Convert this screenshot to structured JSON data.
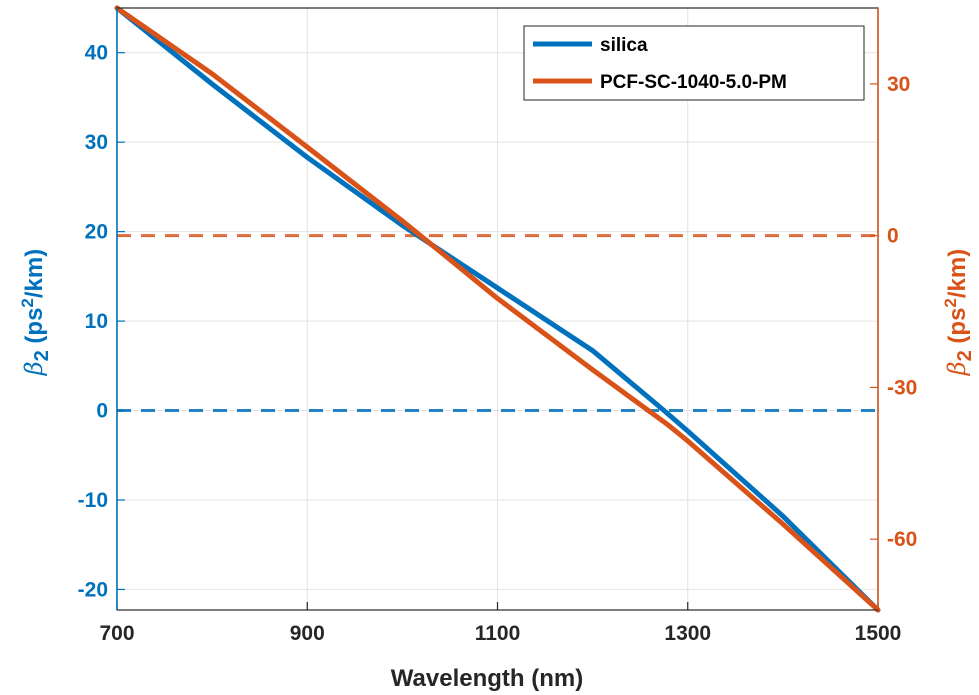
{
  "chart_data": {
    "type": "line",
    "xlabel": "Wavelength (nm)",
    "ylabel_left": {
      "symbol": "β",
      "sub": "2",
      "unit_pre": " (ps",
      "sup": "2",
      "unit_post": "/km)"
    },
    "ylabel_right": {
      "symbol": "β",
      "sub": "2",
      "unit_pre": " (ps",
      "sup": "2",
      "unit_post": "/km)"
    },
    "xlim": [
      700,
      1500
    ],
    "ylim_left": [
      -22.3,
      45
    ],
    "ylim_right": [
      -74,
      45
    ],
    "x_ticks": [
      "700",
      "900",
      "1100",
      "1300",
      "1500"
    ],
    "y_ticks_left": [
      "-20",
      "-10",
      "0",
      "10",
      "20",
      "30",
      "40"
    ],
    "y_ticks_right": [
      "-60",
      "-30",
      "0",
      "30"
    ],
    "grid": true,
    "legend_position": "top-right",
    "colors": {
      "left_axis": "#0072BD",
      "right_axis": "#D95319",
      "axes": "#262626",
      "grid": "#e2e2e2"
    },
    "series": [
      {
        "name": "silica",
        "axis": "left",
        "color": "#0072BD",
        "x": [
          700,
          800,
          900,
          1000,
          1100,
          1200,
          1275,
          1300,
          1400,
          1500
        ],
        "y": [
          45,
          36.5,
          28.3,
          20.7,
          13.7,
          6.7,
          0.0,
          -2.3,
          -11.8,
          -22.3
        ]
      },
      {
        "name": "PCF-SC-1040-5.0-PM",
        "axis": "right",
        "color": "#D95319",
        "x": [
          700,
          800,
          900,
          1000,
          1040,
          1100,
          1200,
          1280,
          1300,
          1400,
          1500
        ],
        "y": [
          45,
          32,
          17.5,
          2.9,
          -3.2,
          -12.4,
          -26.5,
          -37.5,
          -40.6,
          -57.0,
          -74
        ]
      }
    ],
    "reference_lines": [
      {
        "axis": "left",
        "y": 0,
        "color": "#0072BD",
        "style": "dashed"
      },
      {
        "axis": "right",
        "y": 0,
        "color": "#D95319",
        "style": "dashed"
      }
    ]
  }
}
